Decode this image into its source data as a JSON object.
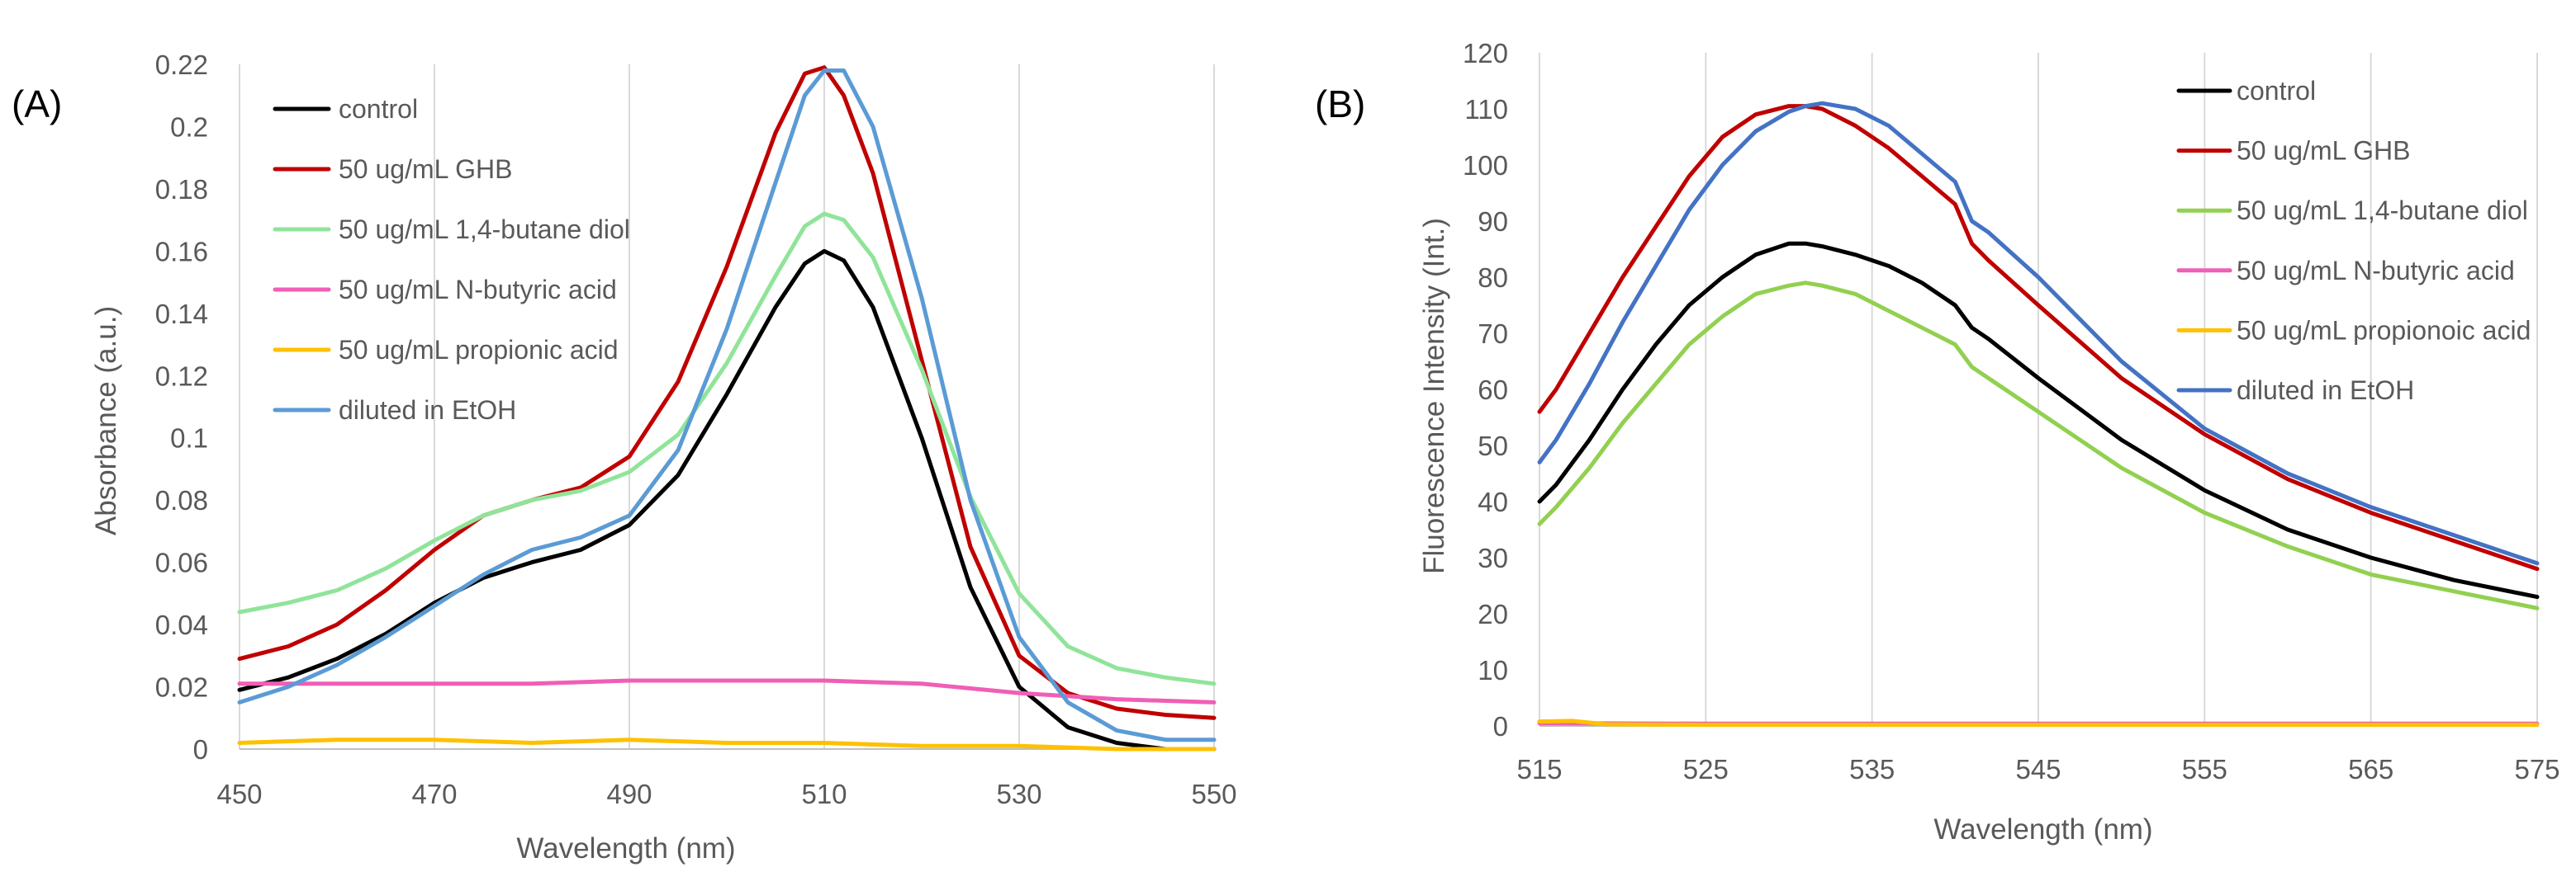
{
  "colors": {
    "control": "#000000",
    "ghb": "#c00000",
    "butane_diol_a": "#90e49a",
    "butane_diol_b": "#92d050",
    "butyric": "#ef5fb5",
    "propionic": "#ffc000",
    "ethanol_a": "#5b9bd5",
    "ethanol_b": "#4472c4"
  },
  "chart_data": [
    {
      "panel_label": "(A)",
      "type": "line",
      "title": "",
      "xlabel": "Wavelength (nm)",
      "ylabel": "Absorbance (a.u.)",
      "xlim": [
        450,
        550
      ],
      "ylim": [
        0,
        0.22
      ],
      "x_ticks": [
        "450",
        "470",
        "490",
        "510",
        "530",
        "550"
      ],
      "y_ticks": [
        "0",
        "0.02",
        "0.04",
        "0.06",
        "0.08",
        "0.1",
        "0.12",
        "0.14",
        "0.16",
        "0.18",
        "0.2",
        "0.22"
      ],
      "grid": "vertical",
      "legend_position": "top-left",
      "series": [
        {
          "name": "control",
          "color": "#000000",
          "x": [
            450,
            455,
            460,
            465,
            470,
            475,
            480,
            485,
            490,
            495,
            500,
            505,
            508,
            510,
            512,
            515,
            520,
            525,
            530,
            535,
            540,
            545,
            550
          ],
          "y": [
            0.019,
            0.023,
            0.029,
            0.037,
            0.047,
            0.055,
            0.06,
            0.064,
            0.072,
            0.088,
            0.114,
            0.142,
            0.156,
            0.16,
            0.157,
            0.142,
            0.1,
            0.052,
            0.02,
            0.007,
            0.002,
            0.0,
            0.0
          ]
        },
        {
          "name": "50 ug/mL GHB",
          "color": "#c00000",
          "x": [
            450,
            455,
            460,
            465,
            470,
            475,
            480,
            485,
            490,
            495,
            500,
            505,
            508,
            510,
            512,
            515,
            520,
            525,
            530,
            535,
            540,
            545,
            550
          ],
          "y": [
            0.029,
            0.033,
            0.04,
            0.051,
            0.064,
            0.075,
            0.08,
            0.084,
            0.094,
            0.118,
            0.155,
            0.198,
            0.217,
            0.219,
            0.21,
            0.185,
            0.125,
            0.065,
            0.03,
            0.018,
            0.013,
            0.011,
            0.01
          ]
        },
        {
          "name": "50 ug/mL 1,4-butane diol",
          "color": "#90e49a",
          "x": [
            450,
            455,
            460,
            465,
            470,
            475,
            480,
            485,
            490,
            495,
            500,
            505,
            508,
            510,
            512,
            515,
            520,
            525,
            530,
            535,
            540,
            545,
            550
          ],
          "y": [
            0.044,
            0.047,
            0.051,
            0.058,
            0.067,
            0.075,
            0.08,
            0.083,
            0.089,
            0.101,
            0.124,
            0.152,
            0.168,
            0.172,
            0.17,
            0.158,
            0.122,
            0.081,
            0.05,
            0.033,
            0.026,
            0.023,
            0.021
          ]
        },
        {
          "name": "50 ug/mL N-butyric acid",
          "color": "#ef5fb5",
          "x": [
            450,
            460,
            470,
            480,
            490,
            500,
            510,
            520,
            530,
            540,
            550
          ],
          "y": [
            0.021,
            0.021,
            0.021,
            0.021,
            0.022,
            0.022,
            0.022,
            0.021,
            0.018,
            0.016,
            0.015
          ]
        },
        {
          "name": "50 ug/mL propionic acid",
          "color": "#ffc000",
          "x": [
            450,
            460,
            470,
            480,
            490,
            500,
            510,
            520,
            530,
            540,
            550
          ],
          "y": [
            0.002,
            0.003,
            0.003,
            0.002,
            0.003,
            0.002,
            0.002,
            0.001,
            0.001,
            0.0,
            0.0
          ]
        },
        {
          "name": "diluted in EtOH",
          "color": "#5b9bd5",
          "x": [
            450,
            455,
            460,
            465,
            470,
            475,
            480,
            485,
            490,
            495,
            500,
            505,
            508,
            510,
            512,
            515,
            520,
            525,
            530,
            535,
            540,
            545,
            550
          ],
          "y": [
            0.015,
            0.02,
            0.027,
            0.036,
            0.046,
            0.056,
            0.064,
            0.068,
            0.075,
            0.096,
            0.135,
            0.182,
            0.21,
            0.218,
            0.218,
            0.2,
            0.145,
            0.08,
            0.036,
            0.015,
            0.006,
            0.003,
            0.003
          ]
        }
      ]
    },
    {
      "panel_label": "(B)",
      "type": "line",
      "title": "",
      "xlabel": "Wavelength (nm)",
      "ylabel": "Fluorescence Intensity (Int.)",
      "xlim": [
        515,
        575
      ],
      "ylim": [
        0,
        120
      ],
      "x_ticks": [
        "515",
        "525",
        "535",
        "545",
        "555",
        "565",
        "575"
      ],
      "y_ticks": [
        "0",
        "10",
        "20",
        "30",
        "40",
        "50",
        "60",
        "70",
        "80",
        "90",
        "100",
        "110",
        "120"
      ],
      "grid": "vertical",
      "legend_position": "top-right",
      "series": [
        {
          "name": "control",
          "color": "#000000",
          "x": [
            515,
            516,
            518,
            520,
            522,
            524,
            526,
            528,
            530,
            531,
            532,
            534,
            536,
            538,
            540,
            541,
            542,
            545,
            550,
            555,
            560,
            565,
            570,
            575
          ],
          "y": [
            40,
            43,
            51,
            60,
            68,
            75,
            80,
            84,
            86,
            86,
            85.5,
            84,
            82,
            79,
            75,
            71,
            69,
            62,
            51,
            42,
            35,
            30,
            26,
            23
          ]
        },
        {
          "name": "50 ug/mL GHB",
          "color": "#c00000",
          "x": [
            515,
            516,
            518,
            520,
            522,
            524,
            526,
            528,
            530,
            531,
            532,
            534,
            536,
            538,
            540,
            541,
            542,
            545,
            550,
            555,
            560,
            565,
            570,
            575
          ],
          "y": [
            56,
            60,
            70,
            80,
            89,
            98,
            105,
            109,
            110.5,
            110.5,
            110,
            107,
            103,
            98,
            93,
            86,
            83,
            75,
            62,
            52,
            44,
            38,
            33,
            28
          ]
        },
        {
          "name": "50 ug/mL 1,4-butane diol",
          "color": "#92d050",
          "x": [
            515,
            516,
            518,
            520,
            522,
            524,
            526,
            528,
            530,
            531,
            532,
            534,
            536,
            538,
            540,
            541,
            542,
            545,
            550,
            555,
            560,
            565,
            570,
            575
          ],
          "y": [
            36,
            39,
            46,
            54,
            61,
            68,
            73,
            77,
            78.5,
            79,
            78.5,
            77,
            74,
            71,
            68,
            64,
            62,
            56,
            46,
            38,
            32,
            27,
            24,
            21
          ]
        },
        {
          "name": "50 ug/mL N-butyric acid",
          "color": "#ef5fb5",
          "x": [
            515,
            525,
            535,
            545,
            555,
            565,
            575
          ],
          "y": [
            0.5,
            0.4,
            0.4,
            0.4,
            0.4,
            0.4,
            0.4
          ]
        },
        {
          "name": "50 ug/mL propionoic acid",
          "color": "#ffc000",
          "x": [
            515,
            517,
            519,
            525,
            535,
            545,
            555,
            565,
            575
          ],
          "y": [
            0.8,
            0.9,
            0.3,
            0.2,
            0.2,
            0.2,
            0.2,
            0.2,
            0.2
          ]
        },
        {
          "name": "diluted in EtOH",
          "color": "#4472c4",
          "x": [
            515,
            516,
            518,
            520,
            522,
            524,
            526,
            528,
            530,
            531,
            532,
            534,
            536,
            538,
            540,
            541,
            542,
            545,
            550,
            555,
            560,
            565,
            570,
            575
          ],
          "y": [
            47,
            51,
            61,
            72,
            82,
            92,
            100,
            106,
            109.5,
            110.5,
            111,
            110,
            107,
            102,
            97,
            90,
            88,
            80,
            65,
            53,
            45,
            39,
            34,
            29
          ]
        }
      ]
    }
  ]
}
